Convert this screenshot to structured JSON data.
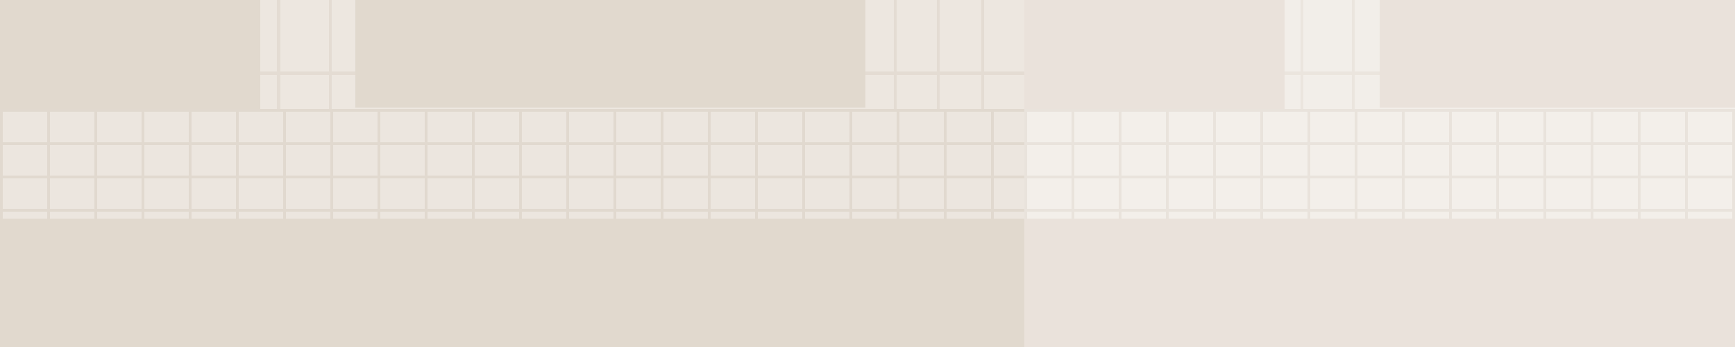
{
  "panels": [
    {
      "name": "left-panel",
      "tone": "warm-beige"
    },
    {
      "name": "right-panel",
      "tone": "light-beige"
    }
  ],
  "colors": {
    "left_block": "#E1D9CE",
    "left_grid_bg": "#ECE6DF",
    "left_grid_line": "#E1D9CF",
    "right_block": "#EAE2DB",
    "right_grid_bg": "#F3EFEA",
    "right_grid_line": "#E9E3DC"
  }
}
